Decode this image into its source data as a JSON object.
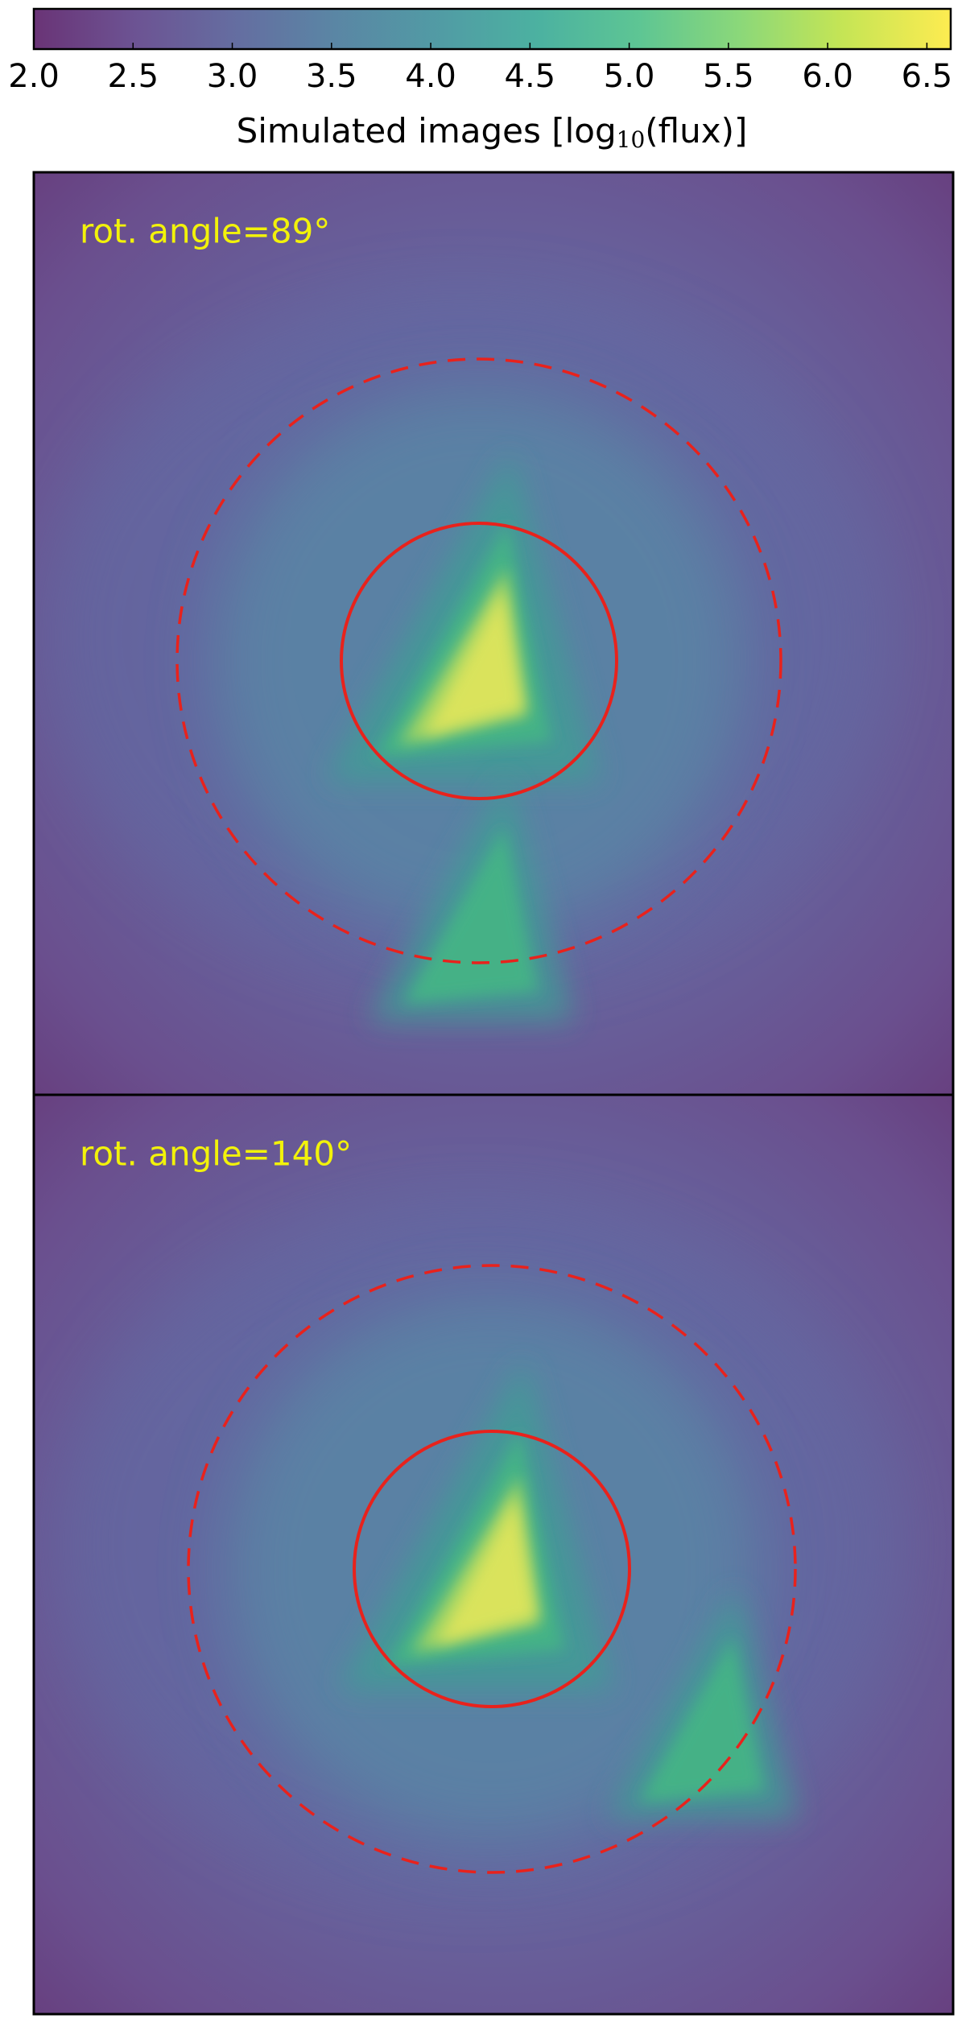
{
  "chart_data": [
    {
      "type": "colorbar",
      "xlim": [
        2.0,
        6.62
      ],
      "xticks": [
        {
          "value": 2.0,
          "label": "2.0"
        },
        {
          "value": 2.5,
          "label": "2.5"
        },
        {
          "value": 3.0,
          "label": "3.0"
        },
        {
          "value": 3.5,
          "label": "3.5"
        },
        {
          "value": 4.0,
          "label": "4.0"
        },
        {
          "value": 4.5,
          "label": "4.5"
        },
        {
          "value": 5.0,
          "label": "5.0"
        },
        {
          "value": 5.5,
          "label": "5.5"
        },
        {
          "value": 6.0,
          "label": "6.0"
        },
        {
          "value": 6.5,
          "label": "6.5"
        }
      ],
      "xlabel": [
        "Simulated images [log",
        "10",
        "(flux)]"
      ]
    },
    {
      "type": "image",
      "annotation": "rot. angle=89°"
    },
    {
      "type": "image",
      "annotation": "rot. angle=140°"
    }
  ]
}
